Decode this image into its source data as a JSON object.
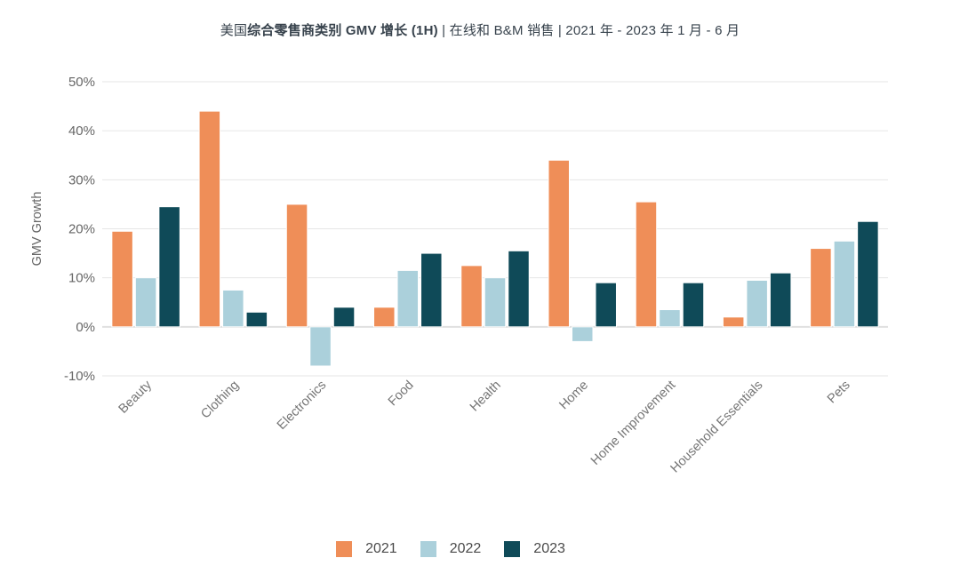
{
  "title": {
    "prefix": "美国",
    "bold": "综合零售商类别 GMV 增长 (1H)",
    "suffix": " | 在线和 B&M 销售 | 2021 年 - 2023 年 1 月 - 6 月"
  },
  "chart_data": {
    "type": "bar",
    "title": "美国综合零售商类别 GMV 增长 (1H) | 在线和 B&M 销售 | 2021 年 - 2023 年 1 月 - 6 月",
    "xlabel": "",
    "ylabel": "GMV Growth",
    "ylim": [
      -10,
      50
    ],
    "yticks": [
      50,
      40,
      30,
      20,
      10,
      0,
      -10
    ],
    "ytick_labels": [
      "50%",
      "40%",
      "30%",
      "20%",
      "10%",
      "0%",
      "-10%"
    ],
    "grid": true,
    "legend_position": "bottom",
    "categories": [
      "Beauty",
      "Clothing",
      "Electronics",
      "Food",
      "Health",
      "Home",
      "Home Improvement",
      "Household Essentials",
      "Pets"
    ],
    "series": [
      {
        "name": "2021",
        "color": "#EF8E58",
        "values": [
          19.5,
          44,
          25,
          4,
          12.5,
          34,
          25.5,
          2,
          16
        ]
      },
      {
        "name": "2022",
        "color": "#ABD0DB",
        "values": [
          10,
          7.5,
          -8,
          11.5,
          10,
          -3,
          3.5,
          9.5,
          17.5
        ]
      },
      {
        "name": "2023",
        "color": "#0F4A58",
        "values": [
          24.5,
          3,
          4,
          15,
          15.5,
          9,
          9,
          11,
          21.5
        ]
      }
    ]
  },
  "colors": {
    "grid_line": "#E6E6E6",
    "zero_line": "#E0E0E0",
    "tick_text": "#666666",
    "category_text": "#757575",
    "title_text": "#37424C"
  }
}
